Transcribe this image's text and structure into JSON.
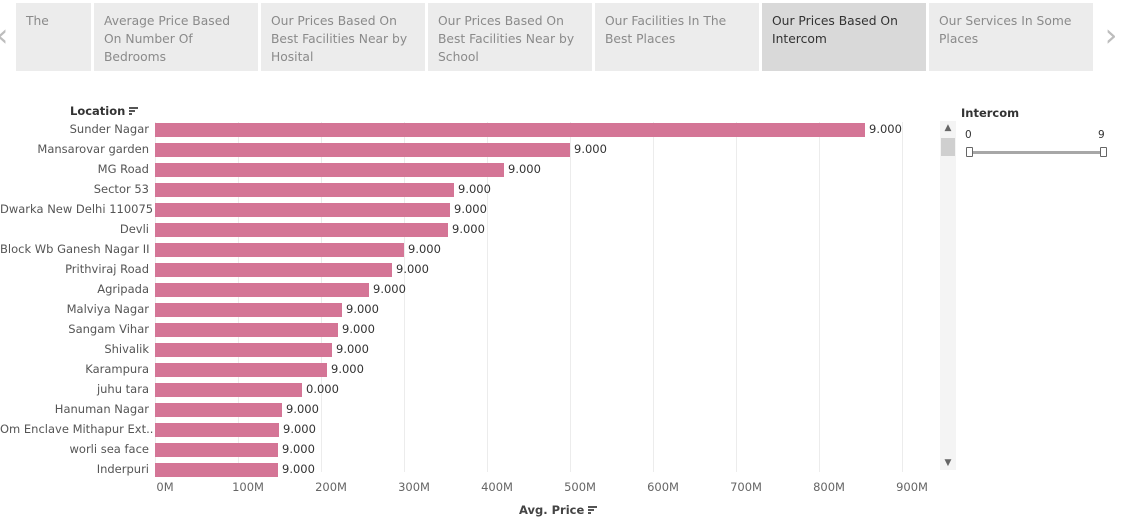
{
  "tabs": [
    {
      "label": "The",
      "active": false
    },
    {
      "label": "Average Price Based On Number Of Bedrooms",
      "active": false
    },
    {
      "label": "Our Prices Based On Best Facilities Near by Hosital",
      "active": false
    },
    {
      "label": "Our Prices Based On Best Facilities  Near by School",
      "active": false
    },
    {
      "label": "Our Facilities In The Best Places",
      "active": false
    },
    {
      "label": "Our Prices Based On Intercom",
      "active": true
    },
    {
      "label": "Our Services In Some Places",
      "active": false
    }
  ],
  "nav": {
    "prev_icon": "chevron-left-icon",
    "next_icon": "chevron-right-icon",
    "prev_glyph": "‹",
    "next_glyph": "›"
  },
  "chart_data": {
    "type": "bar",
    "orientation": "horizontal",
    "row_header": "Location",
    "xlabel": "Avg. Price",
    "x_ticks": [
      "0M",
      "100M",
      "200M",
      "300M",
      "400M",
      "500M",
      "600M",
      "700M",
      "800M",
      "900M"
    ],
    "xlim": [
      0,
      950
    ],
    "bar_color": "#d47596",
    "grid": true,
    "categories": [
      "Sunder Nagar",
      "Mansarovar garden",
      "MG Road",
      "Sector 53",
      "Dwarka New Delhi 110075",
      "Devli",
      "Block Wb Ganesh Nagar II",
      "Prithviraj Road",
      "Agripada",
      "Malviya Nagar",
      "Sangam Vihar",
      "Shivalik",
      "Karampura",
      "juhu tara",
      "Hanuman Nagar",
      "Om Enclave Mithapur Ext..",
      "worli sea face",
      "Inderpuri"
    ],
    "values": [
      855,
      500,
      420,
      360,
      355,
      353,
      300,
      285,
      258,
      225,
      220,
      213,
      207,
      177,
      153,
      150,
      148,
      148
    ],
    "value_labels": [
      "9.000",
      "9.000",
      "9.000",
      "9.000",
      "9.000",
      "9.000",
      "9.000",
      "9.000",
      "9.000",
      "9.000",
      "9.000",
      "9.000",
      "9.000",
      "0.000",
      "9.000",
      "9.000",
      "9.000",
      "9.000"
    ]
  },
  "filter": {
    "title": "Intercom",
    "min": "0",
    "max": "9"
  },
  "scrollbar": {
    "up_glyph": "▲",
    "down_glyph": "▼"
  }
}
